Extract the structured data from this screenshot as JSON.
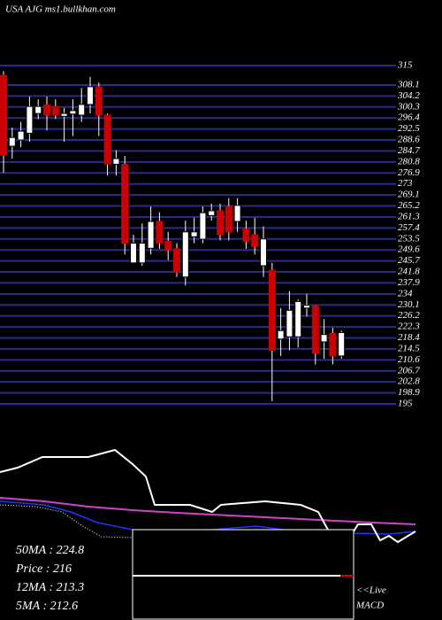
{
  "chart_data": {
    "type": "candlestick",
    "title": "USA AJG ms1.bullkhan.com",
    "open": [
      311.5,
      286.4,
      288.6,
      291,
      298,
      301,
      300.5,
      297,
      297.8,
      297.4,
      301.2,
      307.5,
      297.4,
      280,
      280,
      245,
      245,
      250.2,
      259.7,
      252.7,
      250,
      240,
      254.3,
      253.4,
      261.8,
      263.5,
      265,
      259.7,
      257,
      255,
      244,
      242.4,
      218,
      218.8,
      218.8,
      229,
      229.8,
      217,
      220,
      212
    ],
    "high": [
      313,
      293,
      295,
      304,
      303,
      304,
      303,
      300,
      303,
      307,
      311,
      309,
      298,
      285,
      283,
      255,
      259,
      265,
      263,
      256,
      252,
      260,
      261,
      265,
      266,
      266,
      268,
      268,
      260,
      261,
      258,
      245,
      229,
      235,
      232,
      234,
      230,
      225,
      222,
      221
    ],
    "low": [
      277,
      282,
      286,
      288,
      296,
      292,
      296,
      288,
      290,
      295,
      298,
      290,
      276,
      276,
      248,
      245,
      244,
      248,
      250,
      246,
      240,
      237,
      252,
      252,
      260,
      253,
      253,
      256,
      250,
      248,
      240,
      196,
      212,
      214,
      215,
      226,
      209,
      211,
      209,
      211
    ],
    "close": [
      283.2,
      289.5,
      291.7,
      300.5,
      300.5,
      297.4,
      297.4,
      298,
      299,
      301.2,
      307.5,
      297.4,
      280,
      282,
      252,
      252,
      252,
      259.7,
      252,
      249.6,
      241.7,
      256,
      256,
      262.8,
      263.5,
      255,
      256,
      265.4,
      252.7,
      250.8,
      253.5,
      214,
      221,
      228.2,
      231.3,
      230,
      213,
      219.6,
      212,
      220.3
    ],
    "up_color": "#ffffff",
    "down_color": "#cc0000",
    "grid_color": "#2b2b8c",
    "grid": true,
    "ylim": [
      195,
      315
    ],
    "yticks": [
      315,
      308.1,
      304.2,
      300.3,
      296.4,
      292.5,
      288.6,
      284.7,
      280.8,
      276.9,
      273,
      269.1,
      265.2,
      261.3,
      257.4,
      253.5,
      249.6,
      245.7,
      241.8,
      237.9,
      234,
      230.1,
      226.2,
      222.3,
      218.4,
      214.5,
      210.6,
      206.7,
      202.8,
      198.9,
      195
    ],
    "indicator_labels": [
      "50MA   : 224.8",
      "Price   : 216",
      "12MA   : 213.3",
      "5MA   : 212.6"
    ],
    "live_label": "<<Live",
    "macd_label": "MACD"
  }
}
